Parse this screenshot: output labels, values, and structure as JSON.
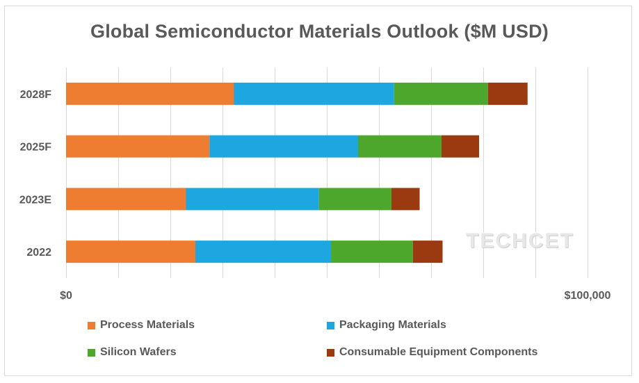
{
  "chart_data": {
    "type": "bar",
    "orientation": "horizontal",
    "stacked": true,
    "title": "Global Semiconductor Materials Outlook ($M USD)",
    "categories": [
      "2022",
      "2023E",
      "2025F",
      "2028F"
    ],
    "series": [
      {
        "name": "Process Materials",
        "color": "#ee7d31",
        "values": [
          24800,
          23000,
          27500,
          32200
        ]
      },
      {
        "name": "Packaging Materials",
        "color": "#1ea6e0",
        "values": [
          26000,
          25500,
          28500,
          30700
        ]
      },
      {
        "name": "Silicon Wafers",
        "color": "#4ea72d",
        "values": [
          15700,
          13900,
          16000,
          18000
        ]
      },
      {
        "name": "Consumable Equipment Components",
        "color": "#9b3a10",
        "values": [
          5700,
          5400,
          7200,
          7600
        ]
      }
    ],
    "xlim": [
      0,
      100000
    ],
    "x_tick_step": 10000,
    "x_tick_labels": [
      {
        "value": 0,
        "label": "$0"
      },
      {
        "value": 100000,
        "label": "$100,000"
      }
    ],
    "xlabel": "",
    "ylabel": "",
    "grid": true,
    "legend_position": "bottom",
    "watermark": "TECHCET"
  }
}
